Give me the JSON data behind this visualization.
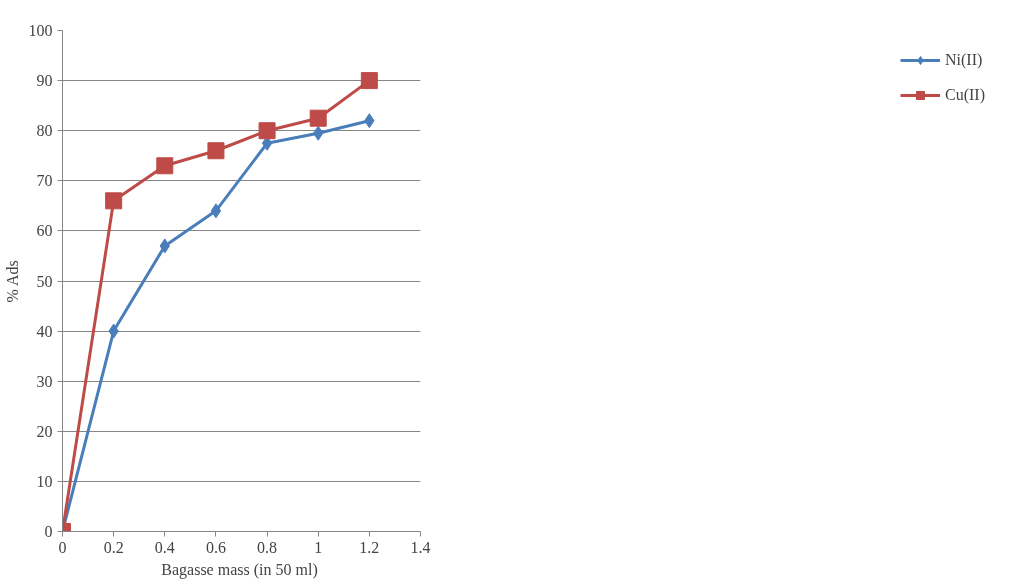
{
  "chart_data": {
    "type": "line",
    "xlabel": "Bagasse  mass (in 50 ml)",
    "ylabel": "% Ads",
    "xlim": [
      0,
      1.4
    ],
    "xticks": [
      0,
      0.2,
      0.4,
      0.6,
      0.8,
      1,
      1.2,
      1.4
    ],
    "ylim": [
      0,
      100
    ],
    "yticks": [
      0,
      10,
      20,
      30,
      40,
      50,
      60,
      70,
      80,
      90,
      100
    ],
    "grid": "y",
    "legend": "right",
    "line_style": "solid",
    "series": [
      {
        "name": "Ni(II)",
        "color": "#4a7ebb",
        "marker": "diamond",
        "x": [
          0,
          0.2,
          0.4,
          0.6,
          0.8,
          1,
          1.2
        ],
        "values": [
          0,
          40,
          57,
          64,
          77.5,
          79.5,
          82
        ]
      },
      {
        "name": "Cu(II)",
        "color": "#be4b48",
        "marker": "square",
        "x": [
          0,
          0.2,
          0.4,
          0.6,
          0.8,
          1,
          1.2
        ],
        "values": [
          0,
          66,
          73,
          76,
          80,
          82.5,
          90
        ]
      }
    ]
  }
}
